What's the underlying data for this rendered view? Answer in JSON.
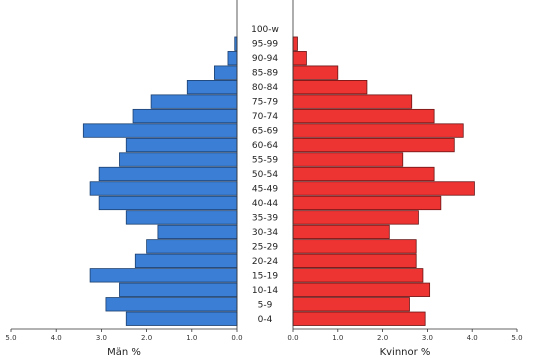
{
  "chart_data": {
    "type": "bar",
    "orientation": "horizontal-population-pyramid",
    "title": "",
    "categories": [
      "0-4",
      "5-9",
      "10-14",
      "15-19",
      "20-24",
      "25-29",
      "30-34",
      "35-39",
      "40-44",
      "45-49",
      "50-54",
      "55-59",
      "60-64",
      "65-69",
      "70-74",
      "75-79",
      "80-84",
      "85-89",
      "90-94",
      "95-99",
      "100-w"
    ],
    "series": [
      {
        "name": "Män",
        "color": "#3a7fd5",
        "values": [
          2.45,
          2.9,
          2.6,
          3.25,
          2.25,
          2.0,
          1.75,
          2.45,
          3.05,
          3.25,
          3.05,
          2.6,
          2.45,
          3.4,
          2.3,
          1.9,
          1.1,
          0.5,
          0.2,
          0.05,
          0.0
        ]
      },
      {
        "name": "Kvinnor",
        "color": "#ee3333",
        "values": [
          2.95,
          2.6,
          3.05,
          2.9,
          2.75,
          2.75,
          2.15,
          2.8,
          3.3,
          4.05,
          3.15,
          2.45,
          3.6,
          3.8,
          3.15,
          2.65,
          1.65,
          1.0,
          0.3,
          0.1,
          0.0
        ]
      }
    ],
    "xlabel_left": "Män %",
    "xlabel_right": "Kvinnor %",
    "xlim": [
      0,
      5
    ],
    "xticks": [
      "0.0",
      "1.0",
      "2.0",
      "3.0",
      "4.0",
      "5.0"
    ],
    "xticks_left": [
      "5.0",
      "4.0",
      "3.0",
      "2.0",
      "1.0",
      "0.0"
    ],
    "grid": false,
    "legend": "none"
  }
}
